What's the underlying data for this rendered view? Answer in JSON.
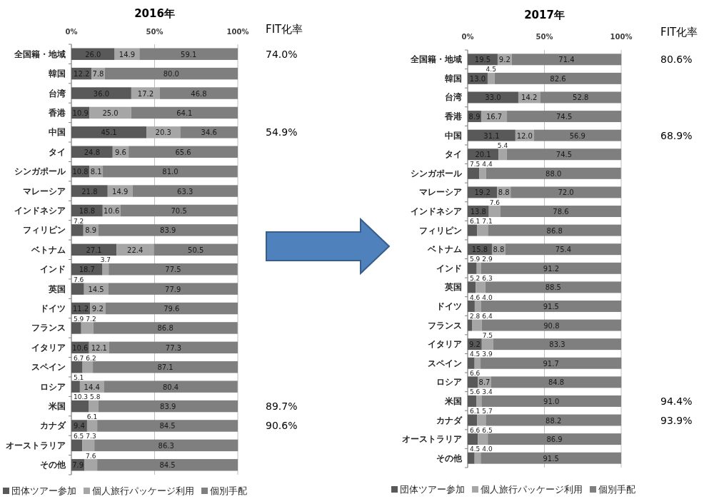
{
  "chart_data": [
    {
      "type": "bar",
      "orientation": "horizontal",
      "stacked": true,
      "title": "2016年",
      "categories": [
        "全国籍・地域",
        "韓国",
        "台湾",
        "香港",
        "中国",
        "タイ",
        "シンガポール",
        "マレーシア",
        "インドネシア",
        "フィリピン",
        "ベトナム",
        "インド",
        "英国",
        "ドイツ",
        "フランス",
        "イタリア",
        "スペイン",
        "ロシア",
        "米国",
        "カナダ",
        "オーストラリア",
        "その他"
      ],
      "series": [
        {
          "name": "団体ツアー参加",
          "color": "#595959",
          "values": [
            26.0,
            12.2,
            36.0,
            10.9,
            45.1,
            24.8,
            10.8,
            21.8,
            18.8,
            7.2,
            27.1,
            18.7,
            7.6,
            11.2,
            5.9,
            10.6,
            6.7,
            5.1,
            10.3,
            9.4,
            6.5,
            7.9
          ],
          "value_labels": [
            "26.0",
            "12.2",
            "36.0",
            "10.9",
            "45.1",
            "24.8",
            "10.8",
            "21.8",
            "18.8",
            "7.2",
            "27.1",
            "18.7",
            "7.6",
            "11.2",
            "5.9",
            "10.6",
            "6.7",
            "5.1",
            "10.3",
            "9.4",
            "6.5",
            "7.9"
          ]
        },
        {
          "name": "個人旅行パッケージ利用",
          "color": "#a6a6a6",
          "values": [
            14.9,
            7.8,
            17.2,
            25.0,
            20.3,
            9.6,
            8.1,
            14.9,
            10.6,
            8.9,
            22.4,
            3.7,
            14.5,
            9.2,
            7.2,
            12.1,
            6.2,
            14.4,
            5.8,
            6.1,
            7.3,
            7.6
          ],
          "value_labels": [
            "14.9",
            "7.8",
            "17.2",
            "25.0",
            "20.3",
            "9.6",
            "8.1",
            "14.9",
            "10.6",
            "8.9",
            "22.4",
            "3.7",
            "14.5",
            "9.2",
            "7.2",
            "12.1",
            "6.2",
            "14.4",
            "5.8",
            "6.1",
            "7.3",
            "7.6"
          ]
        },
        {
          "name": "個別手配",
          "color": "#7f7f7f",
          "values": [
            59.1,
            80.0,
            46.8,
            64.1,
            34.6,
            65.6,
            81.0,
            63.3,
            70.5,
            83.9,
            50.5,
            77.5,
            77.9,
            79.6,
            86.8,
            77.3,
            87.1,
            80.4,
            83.9,
            84.5,
            86.3,
            84.5
          ],
          "value_labels": [
            "59.1",
            "80.0",
            "46.8",
            "64.1",
            "34.6",
            "65.6",
            "81.0",
            "63.3",
            "70.5",
            "83.9",
            "50.5",
            "77.5",
            "77.9",
            "79.6",
            "86.8",
            "77.3",
            "87.1",
            "80.4",
            "83.9",
            "84.5",
            "86.3",
            "84.5"
          ]
        }
      ],
      "xlim": [
        0,
        100
      ],
      "xticks": [
        {
          "value": 0,
          "label": "0%"
        },
        {
          "value": 50,
          "label": "50%"
        },
        {
          "value": 100,
          "label": "100%"
        }
      ],
      "grid": "x",
      "legend": "bottom",
      "annotations": [
        "FIT化率",
        "74.0%",
        "54.9%",
        "89.7%",
        "90.6%"
      ]
    },
    {
      "type": "bar",
      "orientation": "horizontal",
      "stacked": true,
      "title": "2017年",
      "categories": [
        "全国籍・地域",
        "韓国",
        "台湾",
        "香港",
        "中国",
        "タイ",
        "シンガポール",
        "マレーシア",
        "インドネシア",
        "フィリピン",
        "ベトナム",
        "インド",
        "英国",
        "ドイツ",
        "フランス",
        "イタリア",
        "スペイン",
        "ロシア",
        "米国",
        "カナダ",
        "オーストラリア",
        "その他"
      ],
      "series": [
        {
          "name": "団体ツアー参加",
          "color": "#595959",
          "values": [
            19.5,
            13.0,
            33.0,
            8.9,
            31.1,
            20.1,
            7.5,
            19.2,
            13.8,
            6.1,
            15.8,
            5.9,
            5.2,
            4.6,
            2.8,
            9.2,
            4.5,
            6.6,
            5.6,
            6.1,
            6.6,
            4.5
          ],
          "value_labels": [
            "19.5",
            "13.0",
            "33.0",
            "8.9",
            "31.1",
            "20.1",
            "7.5",
            "19.2",
            "13.8",
            "6.1",
            "15.8",
            "5.9",
            "5.2",
            "4.6",
            "2.8",
            "9.2",
            "4.5",
            "6.6",
            "5.6",
            "6.1",
            "6.6",
            "4.5"
          ]
        },
        {
          "name": "個人旅行パッケージ利用",
          "color": "#a6a6a6",
          "values": [
            9.2,
            4.5,
            14.2,
            16.7,
            12.0,
            5.4,
            4.4,
            8.8,
            7.6,
            7.1,
            8.8,
            2.9,
            6.3,
            4.0,
            6.4,
            7.5,
            3.9,
            8.7,
            3.4,
            5.7,
            6.5,
            4.0
          ],
          "value_labels": [
            "9.2",
            "4.5",
            "14.2",
            "16.7",
            "12.0",
            "5.4",
            "4.4",
            "8.8",
            "7.6",
            "7.1",
            "8.8",
            "2.9",
            "6.3",
            "4.0",
            "6.4",
            "7.5",
            "3.9",
            "8.7",
            "3.4",
            "5.7",
            "6.5",
            "4.0"
          ]
        },
        {
          "name": "個別手配",
          "color": "#7f7f7f",
          "values": [
            71.4,
            82.6,
            52.8,
            74.5,
            56.9,
            74.5,
            88.0,
            72.0,
            78.6,
            86.8,
            75.4,
            91.2,
            88.5,
            91.5,
            90.8,
            83.3,
            91.7,
            84.8,
            91.0,
            88.2,
            86.9,
            91.5
          ],
          "value_labels": [
            "71.4",
            "82.6",
            "52.8",
            "74.5",
            "56.9",
            "74.5",
            "88.0",
            "72.0",
            "78.6",
            "86.8",
            "75.4",
            "91.2",
            "88.5",
            "91.5",
            "90.8",
            "83.3",
            "91.7",
            "84.8",
            "91.0",
            "88.2",
            "86.9",
            "91.5"
          ]
        }
      ],
      "xlim": [
        0,
        100
      ],
      "xticks": [
        {
          "value": 0,
          "label": "0%"
        },
        {
          "value": 50,
          "label": "50%"
        },
        {
          "value": 100,
          "label": "100%"
        }
      ],
      "grid": "x",
      "legend": "bottom",
      "annotations": [
        "FIT化率",
        "80.6%",
        "68.9%",
        "94.4%",
        "93.9%"
      ]
    }
  ]
}
